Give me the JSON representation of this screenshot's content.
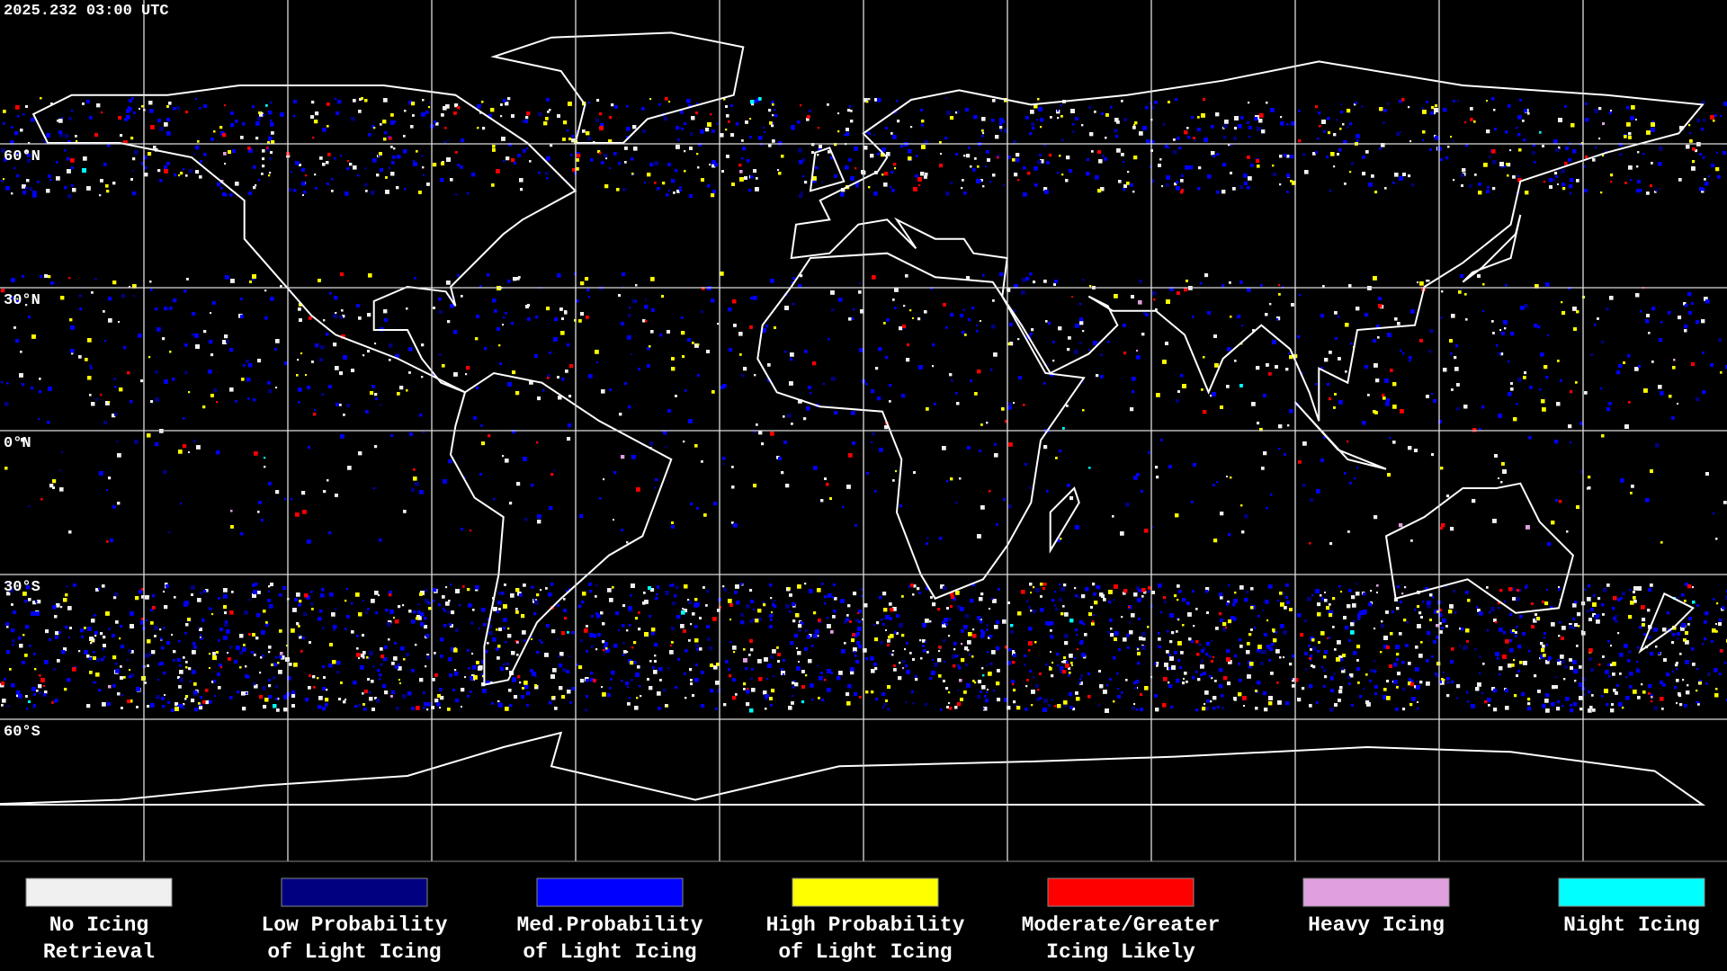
{
  "timestamp": "2025.232 03:00 UTC",
  "grid_labels": [
    "60°N",
    "30°N",
    "0°N",
    "30°S",
    "60°S"
  ],
  "legend": [
    {
      "label_lines": [
        "No Icing",
        "Retrieval"
      ],
      "color": "#f0f0f0"
    },
    {
      "label_lines": [
        "Low Probability",
        "of Light Icing"
      ],
      "color": "#000080"
    },
    {
      "label_lines": [
        "Med.Probability",
        "of Light Icing"
      ],
      "color": "#0000ff"
    },
    {
      "label_lines": [
        "High Probability",
        "of Light Icing"
      ],
      "color": "#ffff00"
    },
    {
      "label_lines": [
        "Moderate/Greater",
        "Icing Likely"
      ],
      "color": "#ff0000"
    },
    {
      "label_lines": [
        "Heavy Icing"
      ],
      "color": "#e0a0e0"
    },
    {
      "label_lines": [
        "Night Icing"
      ],
      "color": "#00ffff"
    }
  ]
}
